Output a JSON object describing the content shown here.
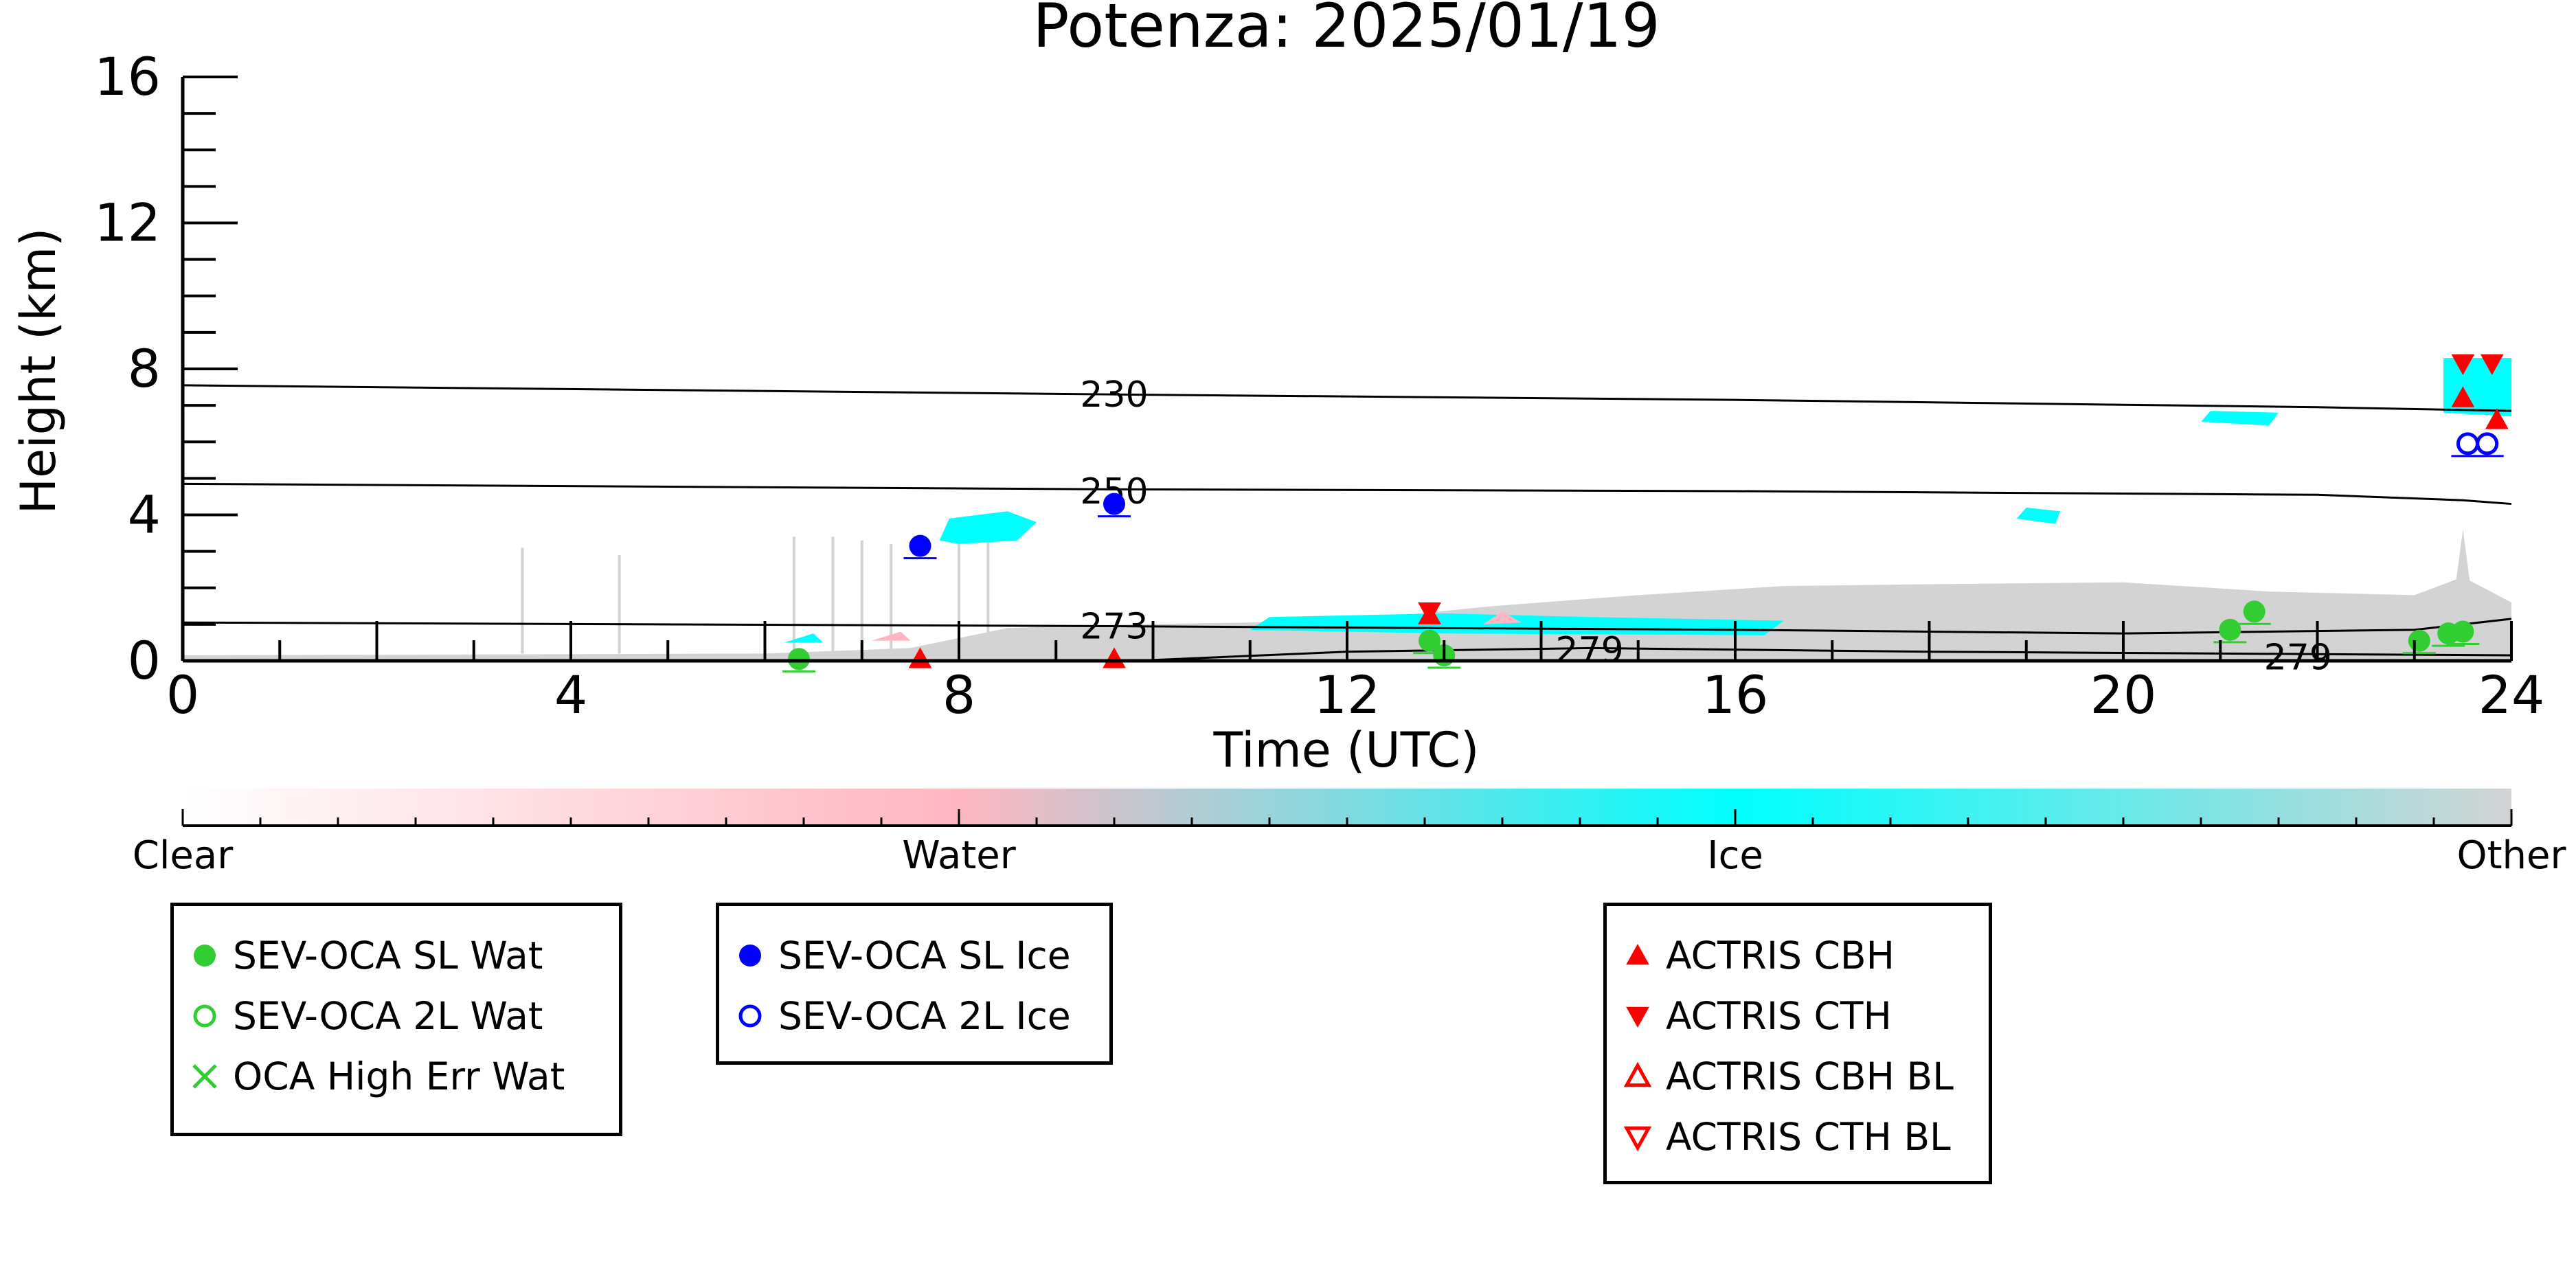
{
  "chart_data": {
    "type": "scatter",
    "title": "Potenza: 2025/01/19",
    "xlabel": "Time (UTC)",
    "ylabel": "Height (km)",
    "xlim": [
      0,
      24
    ],
    "ylim": [
      0,
      16
    ],
    "xticks": [
      0,
      4,
      8,
      12,
      16,
      20,
      24
    ],
    "yticks": [
      0,
      4,
      8,
      12,
      16
    ],
    "xtick_labels": [
      "0",
      "4",
      "8",
      "12",
      "16",
      "20",
      "24"
    ],
    "ytick_labels": [
      "0",
      "4",
      "8",
      "12",
      "16"
    ],
    "grid": false,
    "colorbar": {
      "labels": [
        "Clear",
        "Water",
        "Ice",
        "Other"
      ],
      "colors": [
        "#ffffff",
        "#ffb6c1",
        "#00ffff",
        "#d3d3d3"
      ]
    },
    "contours": [
      {
        "label": "230",
        "points": [
          [
            0,
            7.55
          ],
          [
            9.6,
            7.3
          ],
          [
            16,
            7.15
          ],
          [
            22,
            6.95
          ],
          [
            24,
            6.85
          ]
        ]
      },
      {
        "label": "250",
        "points": [
          [
            0,
            4.85
          ],
          [
            9.6,
            4.7
          ],
          [
            16,
            4.65
          ],
          [
            22,
            4.55
          ],
          [
            23.5,
            4.4
          ],
          [
            24,
            4.3
          ]
        ]
      },
      {
        "label": "273",
        "points": [
          [
            0,
            1.05
          ],
          [
            9.6,
            0.95
          ],
          [
            16,
            0.85
          ],
          [
            20,
            0.75
          ],
          [
            23,
            0.85
          ],
          [
            24,
            1.15
          ]
        ]
      },
      {
        "label": "279",
        "points": [
          [
            9.8,
            0.0
          ],
          [
            12,
            0.25
          ],
          [
            14.5,
            0.35
          ],
          [
            18,
            0.25
          ],
          [
            21,
            0.2
          ],
          [
            24,
            0.15
          ]
        ]
      }
    ],
    "series": [
      {
        "name": "SEV-OCA SL Wat",
        "color": "#32cd32",
        "marker": "filled-circle",
        "points": [
          [
            6.35,
            0.05
          ],
          [
            12.85,
            0.55
          ],
          [
            13.0,
            0.15
          ],
          [
            21.1,
            0.85
          ],
          [
            21.35,
            1.35
          ],
          [
            23.05,
            0.55
          ],
          [
            23.35,
            0.75
          ],
          [
            23.5,
            0.8
          ]
        ]
      },
      {
        "name": "SEV-OCA 2L Wat",
        "color": "#32cd32",
        "marker": "open-circle",
        "points": []
      },
      {
        "name": "OCA High Err Wat",
        "color": "#32cd32",
        "marker": "x",
        "points": []
      },
      {
        "name": "SEV-OCA SL Ice",
        "color": "#0000ff",
        "marker": "filled-circle",
        "points": [
          [
            7.6,
            3.15
          ],
          [
            9.6,
            4.3
          ]
        ]
      },
      {
        "name": "SEV-OCA 2L Ice",
        "color": "#0000ff",
        "marker": "open-circle",
        "points": [
          [
            23.55,
            5.95
          ],
          [
            23.75,
            5.95
          ]
        ]
      },
      {
        "name": "ACTRIS CBH",
        "color": "#ff0000",
        "marker": "triangle-up",
        "points": [
          [
            7.6,
            0.05
          ],
          [
            9.6,
            0.05
          ],
          [
            12.85,
            1.25
          ],
          [
            23.5,
            7.2
          ],
          [
            23.85,
            6.6
          ]
        ]
      },
      {
        "name": "ACTRIS CTH",
        "color": "#ff0000",
        "marker": "triangle-down",
        "points": [
          [
            12.85,
            1.35
          ],
          [
            23.5,
            8.15
          ],
          [
            23.8,
            8.15
          ]
        ]
      },
      {
        "name": "ACTRIS CBH BL",
        "color": "#ff0000",
        "marker": "open-triangle-up",
        "points": []
      },
      {
        "name": "ACTRIS CTH BL",
        "color": "#ff0000",
        "marker": "open-triangle-down",
        "points": []
      }
    ]
  },
  "legends": [
    {
      "items": [
        "SEV-OCA SL Wat",
        "SEV-OCA 2L Wat",
        "OCA High Err Wat"
      ]
    },
    {
      "items": [
        "SEV-OCA SL Ice",
        "SEV-OCA 2L Ice"
      ]
    },
    {
      "items": [
        "ACTRIS CBH",
        "ACTRIS CTH",
        "ACTRIS CBH BL",
        "ACTRIS CTH BL"
      ]
    }
  ]
}
